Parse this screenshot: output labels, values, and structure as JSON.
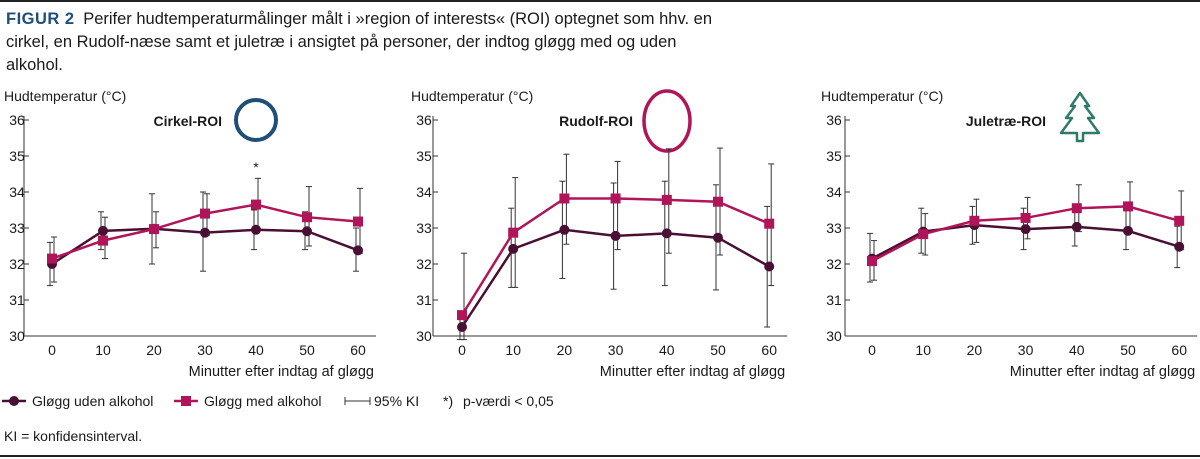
{
  "caption": {
    "figure_label": "FIGUR 2",
    "text": "Perifer hudtemperaturmålinger målt i »region of interests« (ROI) optegnet som hhv. en cirkel, en Rudolf-næse samt et juletræ i ansigtet på personer, der indtog gløgg med og uden alkohol."
  },
  "colors": {
    "without_alcohol": "#4a1033",
    "with_alcohol": "#b0155a",
    "circle_icon": "#1f4e79",
    "rudolf_icon": "#b0155a",
    "tree_icon": "#2f7a6a",
    "axis": "#333333",
    "errorbar": "#333333"
  },
  "legend": {
    "without_alcohol": "Gløgg uden alkohol",
    "with_alcohol": "Gløgg med alkohol",
    "ci": "95% KI",
    "pvalue_mark": "*)",
    "pvalue": "p-værdi < 0,05"
  },
  "footnote": "KI = konfidensinterval.",
  "chart_data": [
    {
      "type": "line",
      "title": "Cirkel-ROI",
      "icon": "circle-icon",
      "ylabel": "Hudtemperatur (°C)",
      "xlabel": "Minutter efter indtag af gløgg",
      "x": [
        0,
        10,
        20,
        30,
        40,
        50,
        60
      ],
      "ylim": [
        30,
        36
      ],
      "yticks": [
        30,
        31,
        32,
        33,
        34,
        35,
        36
      ],
      "annotations": [
        {
          "x": 40,
          "text": "*"
        }
      ],
      "series": [
        {
          "name": "Gløgg uden alkohol",
          "values": [
            32.0,
            32.92,
            32.98,
            32.87,
            32.95,
            32.91,
            32.38
          ],
          "ci_low": [
            31.4,
            32.4,
            32.0,
            31.8,
            32.4,
            32.4,
            31.8
          ],
          "ci_high": [
            32.6,
            33.45,
            33.95,
            34.0,
            33.5,
            33.45,
            33.0
          ]
        },
        {
          "name": "Gløgg med alkohol",
          "values": [
            32.15,
            32.65,
            32.97,
            33.4,
            33.65,
            33.3,
            33.18
          ],
          "ci_low": [
            31.5,
            32.15,
            32.45,
            32.8,
            32.95,
            32.5,
            32.3
          ],
          "ci_high": [
            32.75,
            33.3,
            33.45,
            33.95,
            34.38,
            34.15,
            34.1
          ]
        }
      ]
    },
    {
      "type": "line",
      "title": "Rudolf-ROI",
      "icon": "rudolf-nose-icon",
      "ylabel": "Hudtemperatur (°C)",
      "xlabel": "Minutter efter indtag af gløgg",
      "x": [
        0,
        10,
        20,
        30,
        40,
        50,
        60
      ],
      "ylim": [
        30,
        36
      ],
      "yticks": [
        30,
        31,
        32,
        33,
        34,
        35,
        36
      ],
      "annotations": [],
      "series": [
        {
          "name": "Gløgg uden alkohol",
          "values": [
            30.25,
            32.42,
            32.95,
            32.78,
            32.85,
            32.73,
            31.93
          ],
          "ci_low": [
            29.9,
            31.35,
            31.6,
            31.3,
            31.4,
            31.28,
            30.25
          ],
          "ci_high": [
            30.6,
            33.55,
            34.3,
            34.25,
            34.3,
            34.2,
            33.6
          ]
        },
        {
          "name": "Gløgg med alkohol",
          "values": [
            30.58,
            32.87,
            33.82,
            33.82,
            33.78,
            33.73,
            33.12
          ],
          "ci_low": [
            29.9,
            31.35,
            32.55,
            32.4,
            32.3,
            32.25,
            31.4
          ],
          "ci_high": [
            32.3,
            34.4,
            35.05,
            34.85,
            35.2,
            35.22,
            34.78
          ]
        }
      ]
    },
    {
      "type": "line",
      "title": "Juletræ-ROI",
      "icon": "christmas-tree-icon",
      "ylabel": "Hudtemperatur (°C)",
      "xlabel": "Minutter efter indtag af gløgg",
      "x": [
        0,
        10,
        20,
        30,
        40,
        50,
        60
      ],
      "ylim": [
        30,
        36
      ],
      "yticks": [
        30,
        31,
        32,
        33,
        34,
        35,
        36
      ],
      "annotations": [],
      "series": [
        {
          "name": "Gløgg uden alkohol",
          "values": [
            32.15,
            32.9,
            33.08,
            32.97,
            33.03,
            32.92,
            32.48
          ],
          "ci_low": [
            31.5,
            32.3,
            32.55,
            32.4,
            32.5,
            32.4,
            31.9
          ],
          "ci_high": [
            32.85,
            33.55,
            33.6,
            33.55,
            33.6,
            33.5,
            33.05
          ]
        },
        {
          "name": "Gløgg med alkohol",
          "values": [
            32.08,
            32.83,
            33.2,
            33.28,
            33.55,
            33.6,
            33.2
          ],
          "ci_low": [
            31.55,
            32.25,
            32.6,
            32.7,
            32.9,
            32.9,
            32.4
          ],
          "ci_high": [
            32.65,
            33.4,
            33.8,
            33.85,
            34.2,
            34.28,
            34.03
          ]
        }
      ]
    }
  ]
}
